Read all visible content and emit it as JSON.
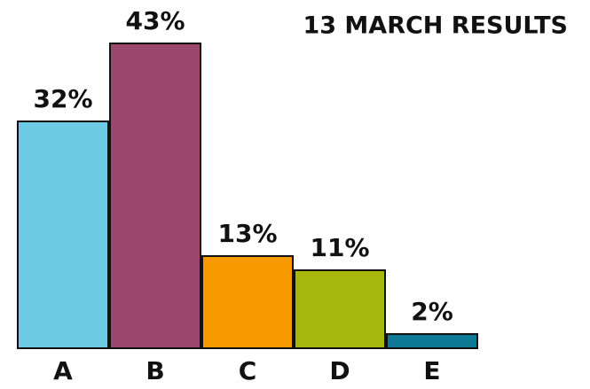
{
  "chart_data": {
    "type": "bar",
    "title": "13 MARCH RESULTS",
    "categories": [
      "A",
      "B",
      "C",
      "D",
      "E"
    ],
    "values": [
      32,
      43,
      13,
      11,
      2
    ],
    "value_labels": [
      "32%",
      "43%",
      "13%",
      "11%",
      "2%"
    ],
    "colors": [
      "#6ccbe3",
      "#9b476e",
      "#f79a00",
      "#a7b70c",
      "#0e7a96"
    ]
  }
}
